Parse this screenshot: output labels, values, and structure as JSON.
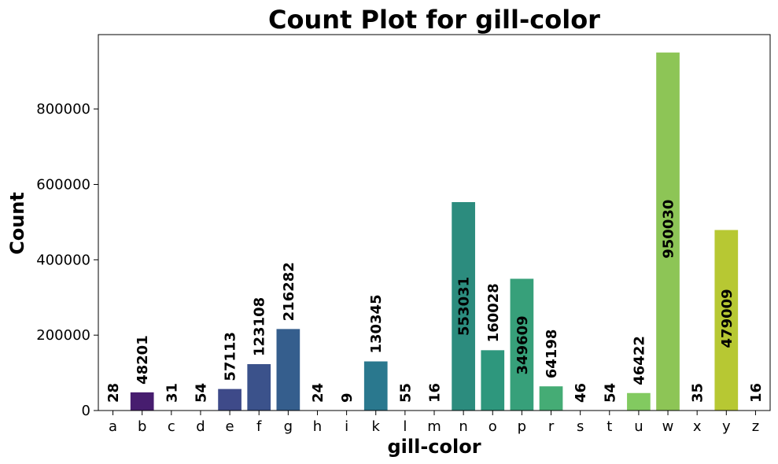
{
  "chart_data": {
    "type": "bar",
    "title": "Count Plot for gill-color",
    "xlabel": "gill-color",
    "ylabel": "Count",
    "ylim": [
      0,
      997532
    ],
    "yticks": [
      0,
      200000,
      400000,
      600000,
      800000
    ],
    "categories": [
      "a",
      "b",
      "c",
      "d",
      "e",
      "f",
      "g",
      "h",
      "i",
      "k",
      "l",
      "m",
      "n",
      "o",
      "p",
      "r",
      "s",
      "t",
      "u",
      "w",
      "x",
      "y",
      "z"
    ],
    "values": [
      28,
      48201,
      31,
      54,
      57113,
      123108,
      216282,
      24,
      9,
      130345,
      55,
      16,
      553031,
      160028,
      349609,
      64198,
      46,
      54,
      46422,
      950030,
      35,
      479009,
      16
    ],
    "colors": [
      "#440154",
      "#481a6c",
      "#472f7d",
      "#414487",
      "#39568c",
      "#31688e",
      "#2a788e",
      "#23888e",
      "#1f988b",
      "#22a884",
      "#35b779",
      "#54c568",
      "#7ad151",
      "#a5db36",
      "#d2e21b",
      "#fde725",
      "#440154",
      "#481a6c",
      "#472f7d",
      "#414487",
      "#39568c",
      "#31688e",
      "#2a788e"
    ],
    "bar_colors": [
      "#3f0f72",
      "#471d6f",
      "#442d7c",
      "#44367f",
      "#3e4a89",
      "#3b528b",
      "#355e8d",
      "#31688e",
      "#2e6f8e",
      "#2a788e",
      "#26828e",
      "#23898e",
      "#2c8c7e",
      "#2e977d",
      "#37a07a",
      "#45ac75",
      "#5ab86c",
      "#6ec264",
      "#82ca60",
      "#8dc556",
      "#a1c843",
      "#b7c833",
      "#cdd42a"
    ],
    "grid": false,
    "legend": "none"
  }
}
